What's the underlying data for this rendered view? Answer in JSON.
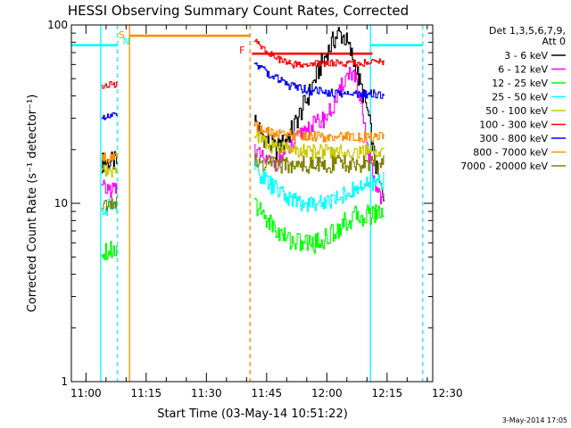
{
  "chart_data": {
    "type": "line",
    "title": "HESSI Observing Summary Count Rates, Corrected",
    "xlabel": "Start Time (03-May-14 10:51:22)",
    "ylabel": "Corrected Count Rate (s⁻¹ detector⁻¹)",
    "yscale": "log",
    "ylim": [
      1,
      100
    ],
    "xlim_minutes": [
      5,
      95
    ],
    "x_tick_labels": [
      "11:00",
      "11:15",
      "11:30",
      "11:45",
      "12:00",
      "12:15",
      "12:30"
    ],
    "x_tick_minutes": [
      8.63,
      23.63,
      38.63,
      53.63,
      68.63,
      83.63,
      98.63
    ],
    "y_tick_labels": [
      "1",
      "10",
      "100"
    ],
    "y_tick_values": [
      1,
      10,
      100
    ],
    "legend": {
      "header": [
        "Det 1,3,5,6,7,9,",
        "Att 0"
      ],
      "placement": "right"
    },
    "date_stamp": "3-May-2014 17:05",
    "flag_labels": [
      {
        "text": "S",
        "color": "#ff8c00"
      },
      {
        "text": "N",
        "color": "#00ffff"
      },
      {
        "text": "F",
        "color": "#ff0000"
      }
    ],
    "flag_lines": [
      {
        "name": "cyan-top-left",
        "color": "#00ffff",
        "x": [
          5,
          16.5
        ],
        "y": 77
      },
      {
        "name": "orange-top",
        "color": "#ff8c00",
        "x": [
          19.5,
          49.5
        ],
        "y": 87
      },
      {
        "name": "red-flare",
        "color": "#ff0000",
        "x": [
          50,
          80
        ],
        "y": 69
      },
      {
        "name": "cyan-top-right",
        "color": "#00ffff",
        "x": [
          79.5,
          92.5
        ],
        "y": 77
      }
    ],
    "vertical_markers": [
      {
        "x": 12.3,
        "color": "#00ffff",
        "style": "solid"
      },
      {
        "x": 16.5,
        "color": "#00ffff",
        "style": "dashed"
      },
      {
        "x": 19.5,
        "color": "#ff8c00",
        "style": "solid"
      },
      {
        "x": 49.5,
        "color": "#ff8c00",
        "style": "dashed"
      },
      {
        "x": 79.5,
        "color": "#00ffff",
        "style": "solid"
      },
      {
        "x": 92.5,
        "color": "#00ffff",
        "style": "dashed"
      }
    ],
    "segments": [
      [
        12.5,
        16.5
      ],
      [
        50.5,
        83
      ]
    ],
    "series": [
      {
        "name": "3 - 6 keV",
        "color": "#000000",
        "seg1": [
          [
            12.5,
            17
          ],
          [
            16.5,
            17
          ]
        ],
        "seg2": [
          [
            50.5,
            30
          ],
          [
            52,
            25
          ],
          [
            54,
            22
          ],
          [
            56,
            20
          ],
          [
            58,
            22
          ],
          [
            60,
            26
          ],
          [
            62,
            32
          ],
          [
            64,
            40
          ],
          [
            66,
            52
          ],
          [
            68,
            65
          ],
          [
            70,
            80
          ],
          [
            71.5,
            90
          ],
          [
            73,
            85
          ],
          [
            74.5,
            70
          ],
          [
            76,
            55
          ],
          [
            77,
            45
          ],
          [
            78,
            38
          ],
          [
            79,
            30
          ],
          [
            80,
            20
          ],
          [
            81,
            15
          ],
          [
            82,
            12
          ],
          [
            83,
            11
          ]
        ]
      },
      {
        "name": "6 - 12 keV",
        "color": "#ff00ff",
        "seg1": [
          [
            12.5,
            12
          ],
          [
            16.5,
            12
          ]
        ],
        "seg2": [
          [
            50.5,
            20
          ],
          [
            52,
            18
          ],
          [
            54,
            17
          ],
          [
            56,
            17
          ],
          [
            58,
            19
          ],
          [
            60,
            21
          ],
          [
            62,
            24
          ],
          [
            64,
            27
          ],
          [
            66,
            28
          ],
          [
            68,
            30
          ],
          [
            70,
            34
          ],
          [
            71.5,
            40
          ],
          [
            73,
            50
          ],
          [
            74.5,
            55
          ],
          [
            75.5,
            52
          ],
          [
            76.5,
            40
          ],
          [
            77.5,
            30
          ],
          [
            78.5,
            22
          ],
          [
            79.5,
            16
          ],
          [
            80.5,
            13
          ],
          [
            82,
            11
          ],
          [
            83,
            10.5
          ]
        ]
      },
      {
        "name": "12 - 25 keV",
        "color": "#00ff00",
        "seg1": [
          [
            12.5,
            5.5
          ],
          [
            16.5,
            5.5
          ]
        ],
        "seg2": [
          [
            50.5,
            10
          ],
          [
            52,
            9
          ],
          [
            54,
            8
          ],
          [
            56,
            7
          ],
          [
            58,
            6.5
          ],
          [
            60,
            6.2
          ],
          [
            62,
            6
          ],
          [
            64,
            6
          ],
          [
            66,
            6
          ],
          [
            68,
            6.3
          ],
          [
            70,
            6.8
          ],
          [
            72,
            7.5
          ],
          [
            74,
            8
          ],
          [
            76,
            8.5
          ],
          [
            78,
            8.5
          ],
          [
            80,
            8.8
          ],
          [
            82,
            9
          ],
          [
            83,
            9
          ]
        ]
      },
      {
        "name": "25 - 50 keV",
        "color": "#00ffff",
        "seg1": [
          [
            12.5,
            9.5
          ],
          [
            16.5,
            9.5
          ]
        ],
        "seg2": [
          [
            50.5,
            16
          ],
          [
            52,
            14.5
          ],
          [
            54,
            13
          ],
          [
            56,
            12
          ],
          [
            58,
            11
          ],
          [
            60,
            10.5
          ],
          [
            62,
            10
          ],
          [
            64,
            10
          ],
          [
            66,
            10
          ],
          [
            68,
            10.2
          ],
          [
            70,
            10.5
          ],
          [
            72,
            11
          ],
          [
            74,
            11.5
          ],
          [
            76,
            12
          ],
          [
            78,
            12.5
          ],
          [
            80,
            13
          ],
          [
            82,
            13.5
          ],
          [
            83,
            13.5
          ]
        ]
      },
      {
        "name": "50 - 100 keV",
        "color": "#c8c800",
        "seg1": [
          [
            12.5,
            15
          ],
          [
            16.5,
            15
          ]
        ],
        "seg2": [
          [
            50.5,
            25
          ],
          [
            52,
            23
          ],
          [
            54,
            21
          ],
          [
            56,
            20.5
          ],
          [
            60,
            20
          ],
          [
            64,
            19.5
          ],
          [
            68,
            19.5
          ],
          [
            72,
            19.5
          ],
          [
            76,
            19.5
          ],
          [
            80,
            19.5
          ],
          [
            83,
            19.5
          ]
        ]
      },
      {
        "name": "100 - 300 keV",
        "color": "#ff0000",
        "seg1": [
          [
            12.5,
            45
          ],
          [
            16.5,
            47
          ]
        ],
        "seg2": [
          [
            50.5,
            82
          ],
          [
            52,
            76
          ],
          [
            54,
            70
          ],
          [
            56,
            65
          ],
          [
            58,
            62
          ],
          [
            60,
            60
          ],
          [
            62,
            60
          ],
          [
            64,
            60
          ],
          [
            68,
            61
          ],
          [
            72,
            61
          ],
          [
            76,
            61
          ],
          [
            80,
            62
          ],
          [
            83,
            62
          ]
        ]
      },
      {
        "name": "300 - 800 keV",
        "color": "#0000ff",
        "seg1": [
          [
            12.5,
            31
          ],
          [
            16.5,
            32
          ]
        ],
        "seg2": [
          [
            50.5,
            62
          ],
          [
            52,
            58
          ],
          [
            54,
            53
          ],
          [
            56,
            50
          ],
          [
            58,
            47
          ],
          [
            60,
            45
          ],
          [
            62,
            44
          ],
          [
            64,
            43
          ],
          [
            68,
            42
          ],
          [
            72,
            41
          ],
          [
            76,
            41
          ],
          [
            80,
            41
          ],
          [
            83,
            41
          ]
        ]
      },
      {
        "name": "800 - 7000 keV",
        "color": "#ff8c00",
        "seg1": [
          [
            12.5,
            18
          ],
          [
            16.5,
            18
          ]
        ],
        "seg2": [
          [
            50.5,
            27
          ],
          [
            52,
            26
          ],
          [
            54,
            25
          ],
          [
            56,
            24.5
          ],
          [
            60,
            24
          ],
          [
            64,
            24
          ],
          [
            68,
            23.5
          ],
          [
            72,
            23.5
          ],
          [
            76,
            23.5
          ],
          [
            80,
            23.5
          ],
          [
            83,
            23.5
          ]
        ]
      },
      {
        "name": "7000 - 20000 keV",
        "color": "#808000",
        "seg1": [
          [
            12.5,
            10
          ],
          [
            16.5,
            10
          ]
        ],
        "seg2": [
          [
            50.5,
            18
          ],
          [
            52,
            17
          ],
          [
            56,
            16.5
          ],
          [
            60,
            16.5
          ],
          [
            64,
            16.5
          ],
          [
            68,
            16.5
          ],
          [
            72,
            16.5
          ],
          [
            76,
            16.5
          ],
          [
            80,
            16.5
          ],
          [
            83,
            16.5
          ]
        ]
      }
    ]
  }
}
